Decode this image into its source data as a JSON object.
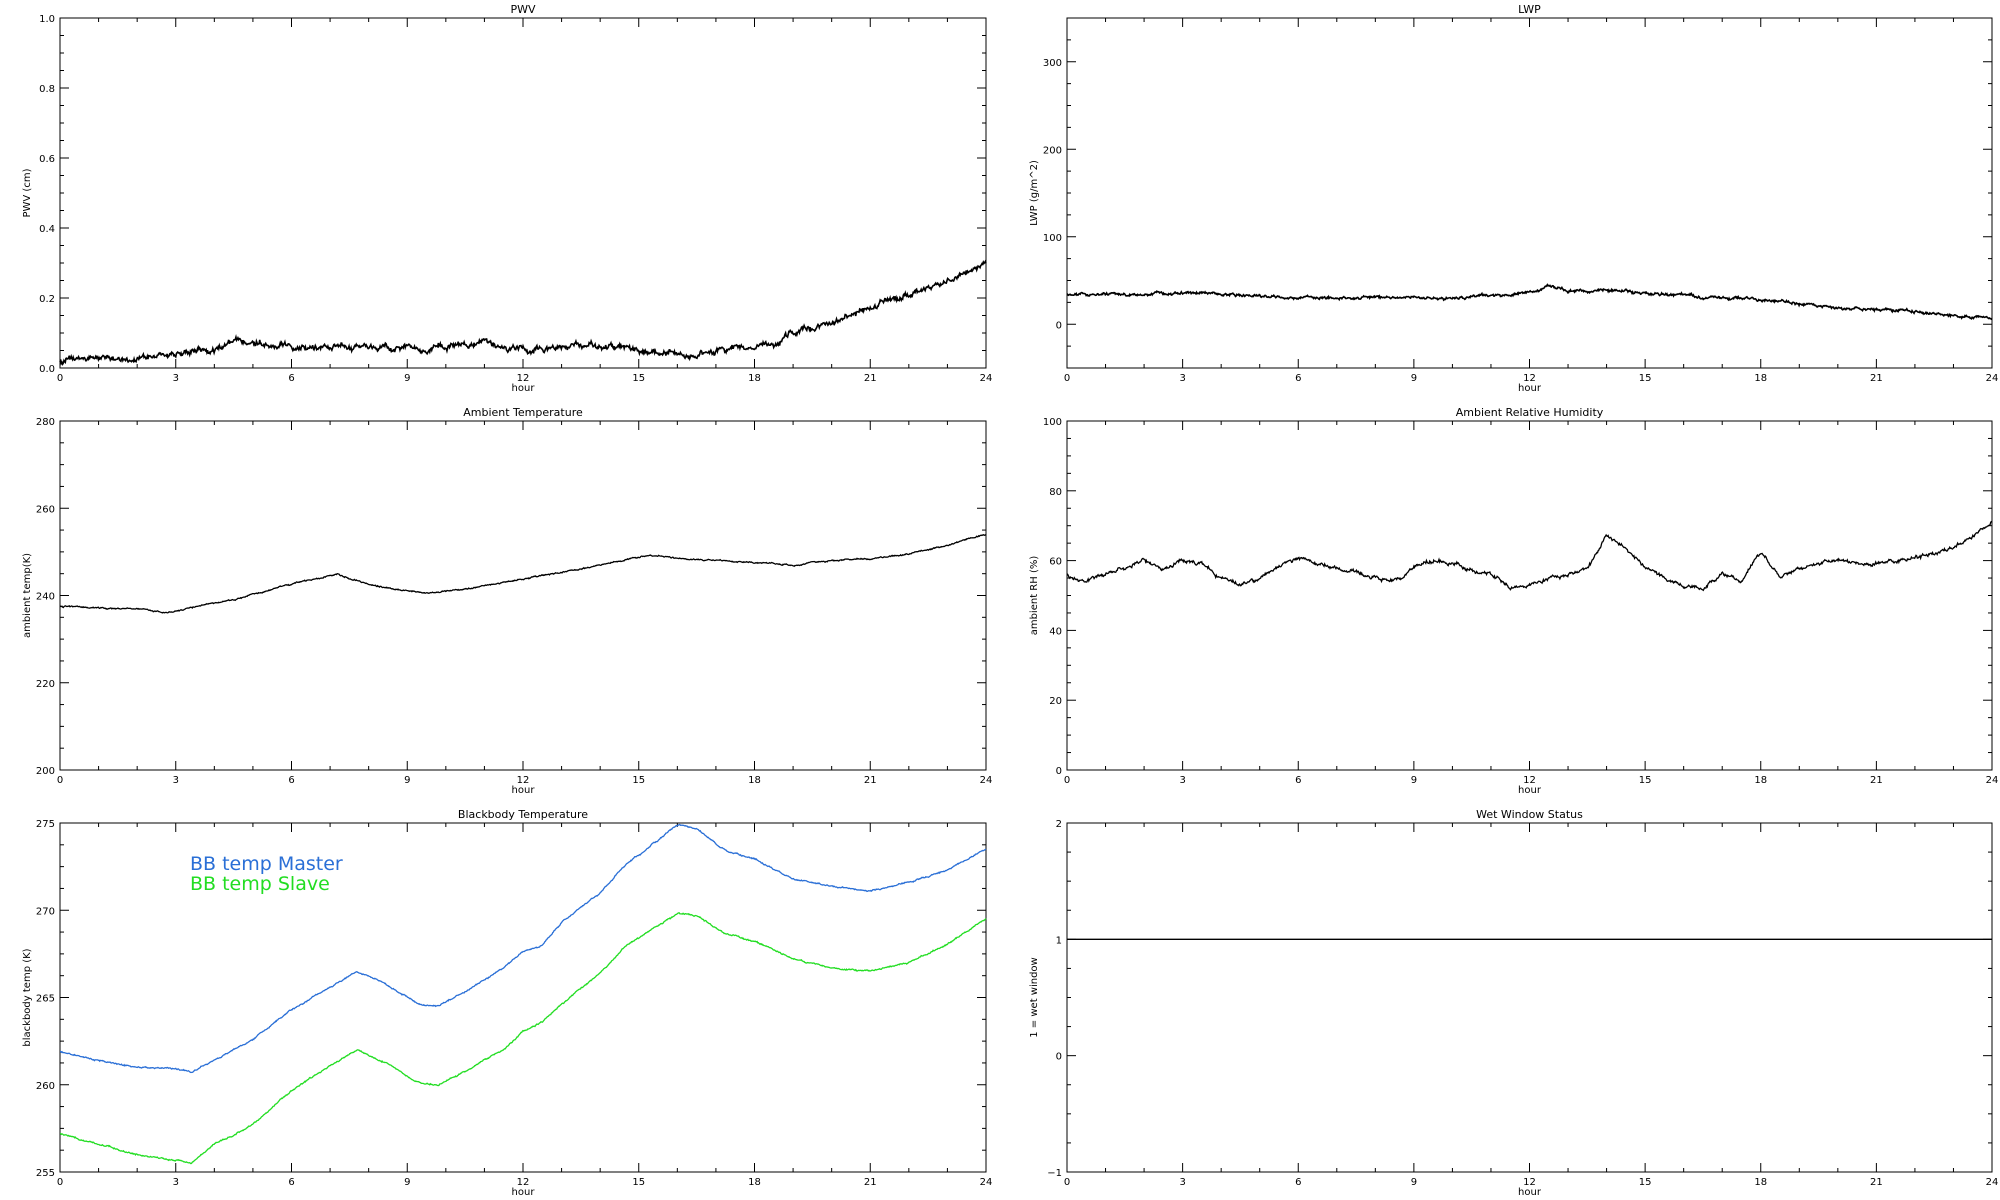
{
  "chart_data": [
    {
      "type": "line",
      "title": "PWV",
      "xlabel": "hour",
      "ylabel": "PWV (cm)",
      "xlim": [
        0,
        24
      ],
      "ylim": [
        0,
        1.0
      ],
      "xticks": [
        "0",
        "3",
        "6",
        "9",
        "12",
        "15",
        "18",
        "21",
        "24"
      ],
      "yticks": [
        "0.0",
        "0.2",
        "0.4",
        "0.6",
        "0.8",
        "1.0"
      ],
      "grid": false,
      "series": [
        {
          "color": "#000000",
          "noise": 0.008,
          "x": [
            0,
            1,
            2,
            3,
            4,
            4.8,
            5.5,
            6,
            7,
            8,
            9,
            10,
            11,
            12,
            13,
            14,
            15,
            16,
            16.5,
            17,
            18,
            18.5,
            19,
            20,
            21,
            22,
            23,
            24
          ],
          "y": [
            0.02,
            0.03,
            0.025,
            0.04,
            0.055,
            0.08,
            0.07,
            0.065,
            0.06,
            0.055,
            0.06,
            0.06,
            0.065,
            0.055,
            0.06,
            0.065,
            0.05,
            0.035,
            0.04,
            0.05,
            0.06,
            0.065,
            0.1,
            0.13,
            0.17,
            0.21,
            0.25,
            0.3
          ]
        }
      ]
    },
    {
      "type": "line",
      "title": "LWP",
      "xlabel": "hour",
      "ylabel": "LWP (g/m^2)",
      "xlim": [
        0,
        24
      ],
      "ylim": [
        -50,
        350
      ],
      "xticks": [
        "0",
        "3",
        "6",
        "9",
        "12",
        "15",
        "18",
        "21",
        "24"
      ],
      "yticks": [
        "0",
        "100",
        "200",
        "300"
      ],
      "grid": false,
      "series": [
        {
          "color": "#000000",
          "noise": 1.5,
          "x": [
            0,
            2,
            3.5,
            5,
            6,
            8,
            10,
            11,
            12,
            12.5,
            13,
            14,
            15,
            16,
            17,
            18,
            19,
            20,
            21,
            22,
            23,
            24
          ],
          "y": [
            33,
            34,
            36,
            32,
            30,
            31,
            30,
            33,
            36,
            44,
            38,
            40,
            34,
            33,
            30,
            28,
            24,
            20,
            17,
            15,
            10,
            7
          ]
        }
      ]
    },
    {
      "type": "line",
      "title": "Ambient Temperature",
      "xlabel": "hour",
      "ylabel": "ambient temp(K)",
      "xlim": [
        0,
        24
      ],
      "ylim": [
        200,
        280
      ],
      "xticks": [
        "0",
        "3",
        "6",
        "9",
        "12",
        "15",
        "18",
        "21",
        "24"
      ],
      "yticks": [
        "200",
        "220",
        "240",
        "260",
        "280"
      ],
      "grid": false,
      "series": [
        {
          "color": "#000000",
          "noise": 0.15,
          "x": [
            0,
            1,
            2,
            2.8,
            3.5,
            4.5,
            5.5,
            6.5,
            7.2,
            8,
            9,
            9.7,
            10.5,
            11.5,
            12.5,
            13.5,
            14.5,
            15.3,
            16,
            17,
            18,
            19,
            20,
            21,
            22,
            23,
            24
          ],
          "y": [
            237.5,
            237.2,
            237,
            236,
            237.5,
            239,
            241.5,
            243.5,
            244.8,
            242.5,
            241,
            240.5,
            241.5,
            243,
            244.5,
            246,
            248,
            249.2,
            248.5,
            248,
            247.5,
            247,
            248,
            248.5,
            249.5,
            251.5,
            254
          ]
        }
      ]
    },
    {
      "type": "line",
      "title": "Ambient Relative Humidity",
      "xlabel": "hour",
      "ylabel": "ambient RH (%)",
      "xlim": [
        0,
        24
      ],
      "ylim": [
        0,
        100
      ],
      "xticks": [
        "0",
        "3",
        "6",
        "9",
        "12",
        "15",
        "18",
        "21",
        "24"
      ],
      "yticks": [
        "0",
        "20",
        "40",
        "60",
        "80",
        "100"
      ],
      "grid": false,
      "series": [
        {
          "color": "#000000",
          "noise": 0.5,
          "x": [
            0,
            0.5,
            1,
            2,
            2.5,
            3,
            3.5,
            4,
            4.5,
            5,
            5.5,
            6,
            6.5,
            7,
            7.5,
            8,
            8.5,
            9,
            9.5,
            10,
            10.5,
            11,
            11.5,
            12,
            12.5,
            13,
            13.5,
            14,
            14.5,
            15,
            15.5,
            16,
            16.5,
            17,
            17.5,
            18,
            18.5,
            19,
            19.5,
            20,
            21,
            22,
            22.5,
            23,
            23.5,
            24
          ],
          "y": [
            56,
            54,
            56,
            60,
            57,
            60,
            59,
            55,
            53,
            55,
            58,
            61,
            59,
            58,
            57,
            55,
            54,
            58,
            60,
            59,
            57,
            56,
            52,
            53,
            55,
            56,
            58,
            67,
            64,
            58,
            55,
            53,
            52,
            56,
            54,
            62,
            55,
            58,
            59,
            60,
            59,
            61,
            62,
            64,
            67,
            71
          ]
        }
      ]
    },
    {
      "type": "line",
      "title": "Blackbody Temperature",
      "xlabel": "hour",
      "ylabel": "blackbody temp (K)",
      "xlim": [
        0,
        24
      ],
      "ylim": [
        255,
        275
      ],
      "xticks": [
        "0",
        "3",
        "6",
        "9",
        "12",
        "15",
        "18",
        "21",
        "24"
      ],
      "yticks": [
        "255",
        "260",
        "265",
        "270",
        "275"
      ],
      "grid": false,
      "legend": "top-left",
      "series": [
        {
          "name": "BB temp Master",
          "color": "#2a6fd6",
          "noise": 0.04,
          "x": [
            0,
            1,
            2,
            3,
            3.4,
            4,
            5,
            6,
            7,
            7.7,
            8.5,
            9.3,
            9.8,
            10.5,
            11.5,
            12,
            12.5,
            13,
            14,
            14.7,
            15.2,
            16,
            16.5,
            17.2,
            18,
            19,
            20,
            21,
            22,
            23,
            24
          ],
          "y": [
            261.9,
            261.4,
            261.0,
            260.9,
            260.7,
            261.4,
            262.6,
            264.3,
            265.6,
            266.5,
            265.7,
            264.6,
            264.5,
            265.3,
            266.7,
            267.6,
            268.0,
            269.3,
            271.0,
            272.7,
            273.5,
            274.9,
            274.7,
            273.5,
            272.9,
            271.8,
            271.4,
            271.1,
            271.6,
            272.3,
            273.5
          ]
        },
        {
          "name": "BB temp Slave",
          "color": "#22dd22",
          "noise": 0.04,
          "x": [
            0,
            1,
            2,
            3,
            3.4,
            4,
            5,
            6,
            7,
            7.7,
            8.5,
            9.3,
            9.8,
            10.5,
            11.5,
            12,
            12.5,
            13,
            14,
            14.7,
            15.2,
            16,
            16.5,
            17.2,
            18,
            19,
            20,
            21,
            22,
            23,
            24
          ],
          "y": [
            257.2,
            256.6,
            256.0,
            255.7,
            255.5,
            256.6,
            257.7,
            259.7,
            261.1,
            262.0,
            261.2,
            260.1,
            260.0,
            260.8,
            262.0,
            263.1,
            263.6,
            264.6,
            266.4,
            268.0,
            268.7,
            269.8,
            269.7,
            268.7,
            268.2,
            267.2,
            266.7,
            266.5,
            267.0,
            268.1,
            269.5
          ]
        }
      ]
    },
    {
      "type": "line",
      "title": "Wet Window Status",
      "xlabel": "hour",
      "ylabel": "1 = wet window",
      "xlim": [
        0,
        24
      ],
      "ylim": [
        -1,
        2
      ],
      "xticks": [
        "0",
        "3",
        "6",
        "9",
        "12",
        "15",
        "18",
        "21",
        "24"
      ],
      "yticks": [
        "−1",
        "0",
        "1",
        "2"
      ],
      "grid": false,
      "series": [
        {
          "color": "#000000",
          "noise": 0,
          "x": [
            0,
            24
          ],
          "y": [
            1,
            1
          ]
        }
      ]
    }
  ]
}
